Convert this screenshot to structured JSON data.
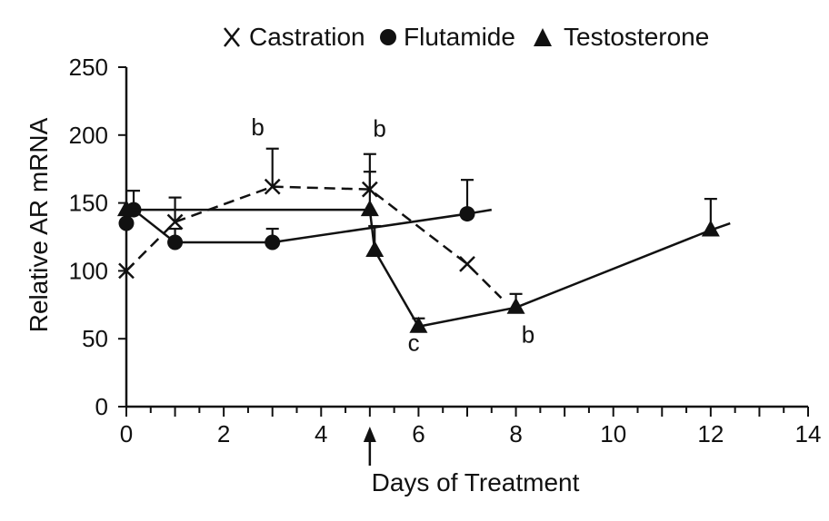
{
  "chart_data": {
    "type": "line",
    "title": "",
    "xlabel": "Days of Treatment",
    "ylabel": "Relative AR mRNA",
    "xlim": [
      0,
      14
    ],
    "ylim": [
      0,
      250
    ],
    "xticks": [
      0,
      2,
      4,
      6,
      8,
      10,
      12,
      14
    ],
    "yticks": [
      0,
      50,
      100,
      150,
      200,
      250
    ],
    "grid": false,
    "legend_position": "top",
    "series": [
      {
        "name": "Castration",
        "marker": "x",
        "line_style": "dashed",
        "x": [
          0,
          1,
          3,
          5,
          7,
          7.7
        ],
        "y": [
          100,
          136,
          162,
          160,
          105,
          80
        ],
        "error": [
          0,
          18,
          28,
          26,
          0,
          0
        ]
      },
      {
        "name": "Flutamide",
        "marker": "circle",
        "line_style": "solid",
        "x": [
          0,
          0.15,
          1,
          3,
          7,
          7.5
        ],
        "y": [
          135,
          145,
          121,
          121,
          142,
          145
        ],
        "error": [
          0,
          14,
          10,
          10,
          25,
          0
        ]
      },
      {
        "name": "Testosterone",
        "marker": "triangle",
        "line_style": "solid",
        "x": [
          0,
          5,
          5.1,
          6,
          8,
          12,
          12.4
        ],
        "y": [
          145,
          145,
          115,
          59,
          73,
          130,
          135
        ],
        "error": [
          0,
          28,
          18,
          6,
          10,
          23,
          0
        ]
      }
    ],
    "annotations": [
      {
        "text": "b",
        "x": 2.7,
        "y": 200
      },
      {
        "text": "b",
        "x": 5.2,
        "y": 199
      },
      {
        "text": "c",
        "x": 5.9,
        "y": 41
      },
      {
        "text": "b",
        "x": 8.25,
        "y": 47
      }
    ],
    "treatment_arrow_x": 5
  }
}
